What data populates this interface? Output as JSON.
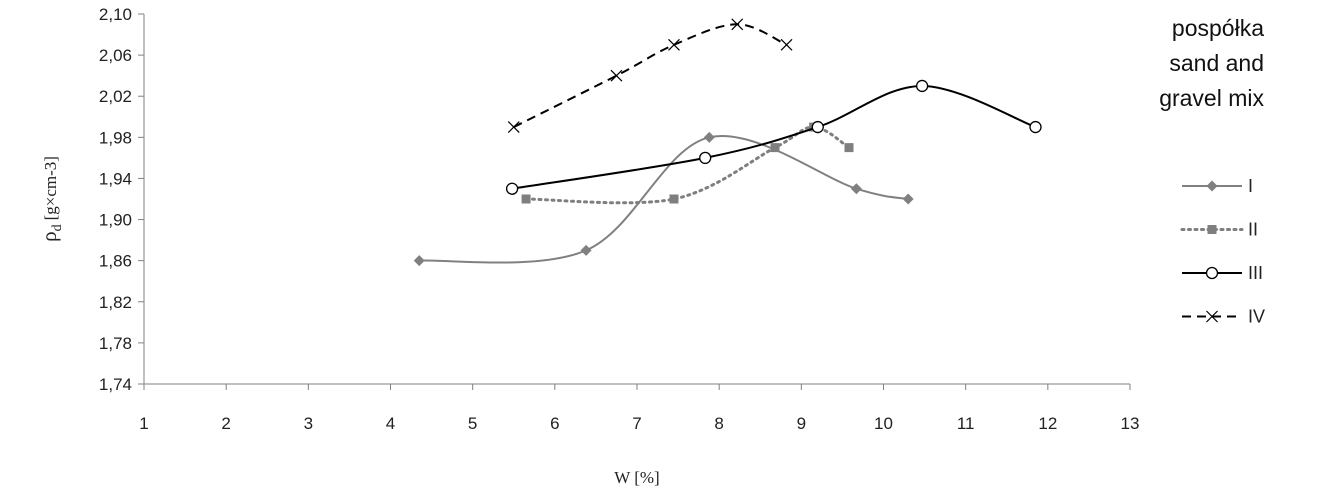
{
  "chart_data": {
    "type": "line",
    "xlabel": "W [%]",
    "ylabel": {
      "symbol": "ρ",
      "subscript": "d",
      "unit": "[g×cm-3]"
    },
    "xlim": [
      1,
      13
    ],
    "ylim": [
      1.74,
      2.1
    ],
    "x_ticks": [
      "1",
      "2",
      "3",
      "4",
      "5",
      "6",
      "7",
      "8",
      "9",
      "10",
      "11",
      "12",
      "13"
    ],
    "y_ticks": [
      "1,74",
      "1,78",
      "1,82",
      "1,86",
      "1,90",
      "1,94",
      "1,98",
      "2,02",
      "2,06",
      "2,10"
    ],
    "annotation": [
      "pospółka",
      "sand and",
      "gravel mix"
    ],
    "legend_position": "right",
    "grid": false,
    "series": [
      {
        "name": "I",
        "color": "#808080",
        "style": "solid",
        "marker": "diamond",
        "smooth": true,
        "points": [
          [
            4.35,
            1.86
          ],
          [
            6.38,
            1.87
          ],
          [
            7.88,
            1.98
          ],
          [
            9.67,
            1.93
          ],
          [
            10.3,
            1.92
          ]
        ]
      },
      {
        "name": "II",
        "color": "#7f7f7f",
        "style": "dotted",
        "marker": "square",
        "smooth": true,
        "points": [
          [
            5.65,
            1.92
          ],
          [
            7.45,
            1.92
          ],
          [
            8.68,
            1.97
          ],
          [
            9.15,
            1.99
          ],
          [
            9.58,
            1.97
          ]
        ]
      },
      {
        "name": "III",
        "color": "#000000",
        "style": "solid",
        "marker": "circle",
        "smooth": true,
        "points": [
          [
            5.48,
            1.93
          ],
          [
            7.83,
            1.96
          ],
          [
            9.2,
            1.99
          ],
          [
            10.47,
            2.03
          ],
          [
            11.85,
            1.99
          ]
        ]
      },
      {
        "name": "IV",
        "color": "#000000",
        "style": "dashed",
        "marker": "x",
        "smooth": true,
        "points": [
          [
            5.5,
            1.99
          ],
          [
            6.75,
            2.04
          ],
          [
            7.45,
            2.07
          ],
          [
            8.22,
            2.09
          ],
          [
            8.82,
            2.07
          ]
        ]
      }
    ]
  }
}
